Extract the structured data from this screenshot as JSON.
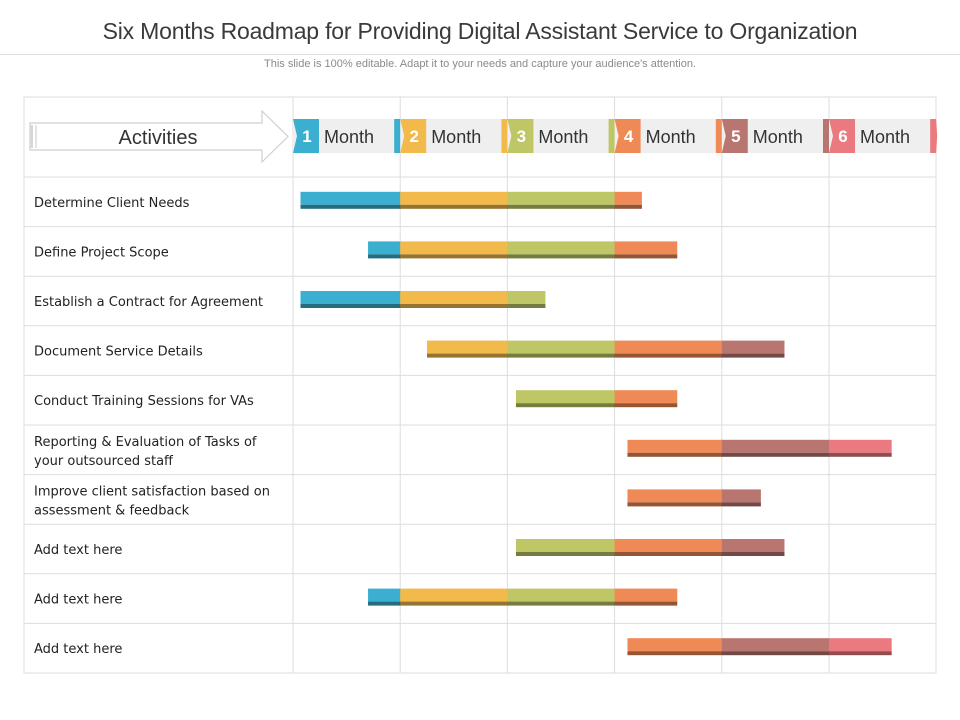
{
  "header": {
    "title": "Six Months Roadmap for Providing Digital Assistant Service to Organization",
    "subtitle": "This slide is 100% editable. Adapt it to your needs and capture your audience's attention."
  },
  "chart_data": {
    "type": "gantt",
    "activities_label": "Activities",
    "months": [
      {
        "num": "1",
        "label": "Month",
        "color": "#3aafcf"
      },
      {
        "num": "2",
        "label": "Month",
        "color": "#f2b94b"
      },
      {
        "num": "3",
        "label": "Month",
        "color": "#bfc665"
      },
      {
        "num": "4",
        "label": "Month",
        "color": "#ef8956"
      },
      {
        "num": "5",
        "label": "Month",
        "color": "#b97570"
      },
      {
        "num": "6",
        "label": "Month",
        "color": "#ea7a7f"
      }
    ],
    "tasks": [
      {
        "lines": [
          "Determine Client Needs"
        ],
        "start": 0.07,
        "end": 3.25
      },
      {
        "lines": [
          "Define Project Scope"
        ],
        "start": 0.7,
        "end": 3.58
      },
      {
        "lines": [
          "Establish a Contract for Agreement"
        ],
        "start": 0.07,
        "end": 2.35
      },
      {
        "lines": [
          "Document Service Details"
        ],
        "start": 1.25,
        "end": 4.58
      },
      {
        "lines": [
          "Conduct Training Sessions for VAs"
        ],
        "start": 2.08,
        "end": 3.58
      },
      {
        "lines": [
          "Reporting & Evaluation of Tasks of",
          "your outsourced staff"
        ],
        "start": 3.12,
        "end": 5.58
      },
      {
        "lines": [
          "Improve  client satisfaction based on",
          "assessment & feedback"
        ],
        "start": 3.12,
        "end": 4.36
      },
      {
        "lines": [
          "Add text here"
        ],
        "start": 2.08,
        "end": 4.58
      },
      {
        "lines": [
          "Add text here"
        ],
        "start": 0.7,
        "end": 3.58
      },
      {
        "lines": [
          "Add text here"
        ],
        "start": 3.12,
        "end": 5.58
      }
    ]
  }
}
